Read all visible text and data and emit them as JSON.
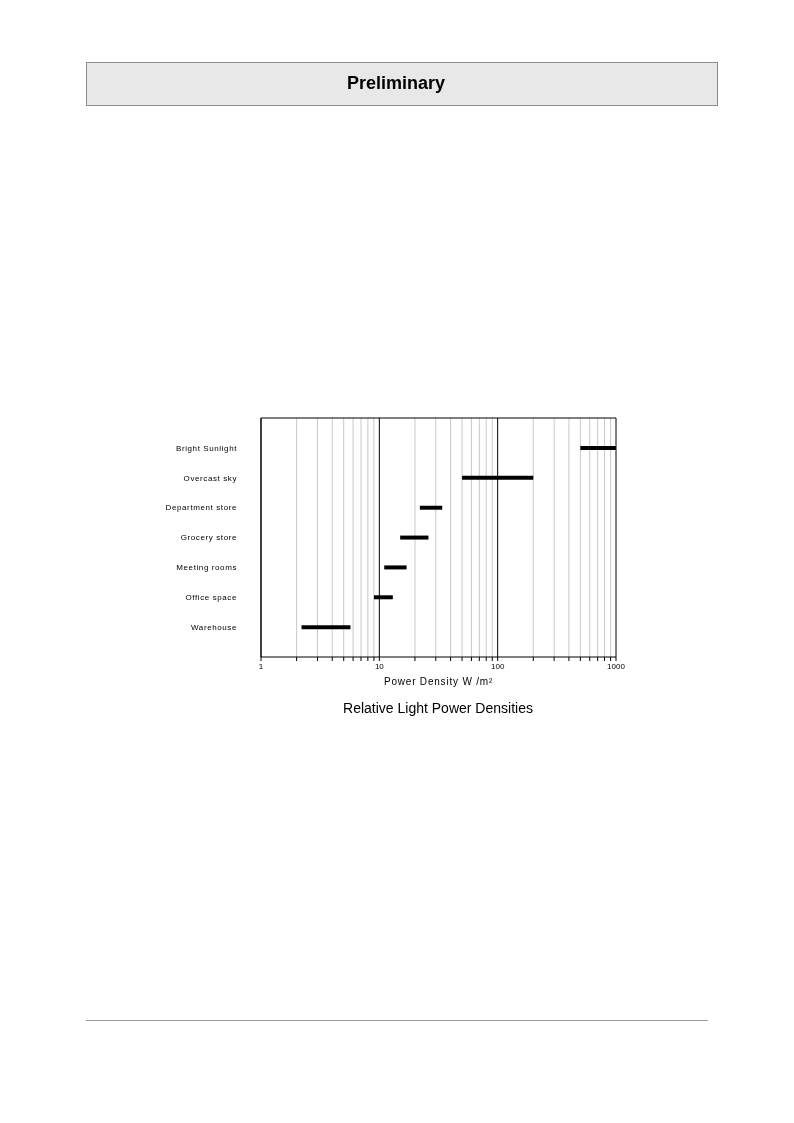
{
  "chart_data": {
    "type": "bar",
    "orientation": "horizontal",
    "title": "Relative Light Power Densities",
    "xlabel": "Power Density W /m²",
    "annotations": [
      "Preliminary"
    ],
    "categories": [
      "Bright Sunlight",
      "Overcast sky",
      "Department store",
      "Grocery store",
      "Meeting rooms",
      "Office space",
      "Warehouse"
    ],
    "base": [
      500,
      50,
      22,
      15,
      11,
      9,
      2.2
    ],
    "values": [
      500,
      150,
      12,
      11,
      6,
      4,
      3.5
    ],
    "color": "#000000",
    "log": "x",
    "xlim": [
      1,
      1000
    ],
    "xticks": [
      1,
      {
        "value": 2,
        "label": null
      },
      {
        "value": 3,
        "label": null
      },
      {
        "value": 4,
        "label": null
      },
      {
        "value": 5,
        "label": null
      },
      {
        "value": 6,
        "label": null
      },
      {
        "value": 7,
        "label": null
      },
      {
        "value": 8,
        "label": null
      },
      {
        "value": 9,
        "label": null
      },
      10,
      {
        "value": 20,
        "label": null
      },
      {
        "value": 30,
        "label": null
      },
      {
        "value": 40,
        "label": null
      },
      {
        "value": 50,
        "label": null
      },
      {
        "value": 60,
        "label": null
      },
      {
        "value": 70,
        "label": null
      },
      {
        "value": 80,
        "label": null
      },
      {
        "value": 90,
        "label": null
      },
      100,
      {
        "value": 200,
        "label": null
      },
      {
        "value": 300,
        "label": null
      },
      {
        "value": 400,
        "label": null
      },
      {
        "value": 500,
        "label": null
      },
      {
        "value": 600,
        "label": null
      },
      {
        "value": 700,
        "label": null
      },
      {
        "value": 800,
        "label": null
      },
      {
        "value": 900,
        "label": null
      },
      1000
    ],
    "grid": "x"
  }
}
